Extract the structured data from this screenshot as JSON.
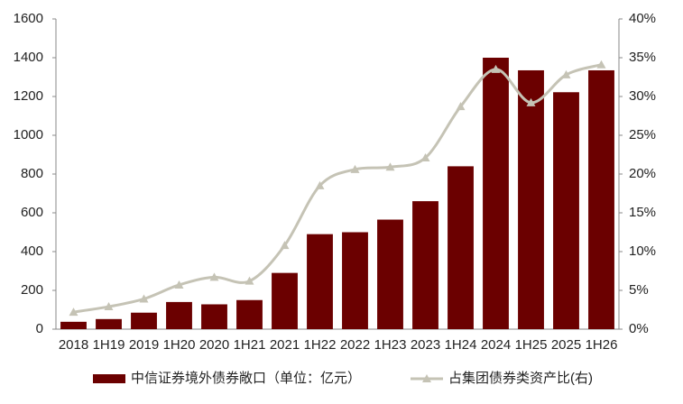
{
  "chart_data": {
    "type": "bar",
    "categories": [
      "2018",
      "1H19",
      "2019",
      "1H20",
      "2020",
      "1H21",
      "2021",
      "1H22",
      "2022",
      "1H23",
      "2023",
      "1H24",
      "2024",
      "1H25",
      "2025",
      "1H26"
    ],
    "series": [
      {
        "name": "中信证券境外债券敞口（单位：亿元）",
        "type": "bar",
        "color": "#6b0000",
        "values": [
          38,
          52,
          85,
          140,
          128,
          150,
          290,
          490,
          500,
          565,
          660,
          840,
          1400,
          1335,
          1222,
          1335
        ]
      },
      {
        "name": "占集团债券类资产比(右)",
        "type": "line",
        "axis": "y2",
        "color": "#c5c3b5",
        "values": [
          2.2,
          2.9,
          3.9,
          5.7,
          6.7,
          6.2,
          10.8,
          18.5,
          20.6,
          20.9,
          22.1,
          28.7,
          33.5,
          29.2,
          32.8,
          34.1
        ]
      }
    ],
    "ylim": [
      0,
      1600
    ],
    "yticks": [
      0,
      200,
      400,
      600,
      800,
      1000,
      1200,
      1400,
      1600
    ],
    "y2lim": [
      0,
      40
    ],
    "y2ticks": [
      {
        "value": 0,
        "label": "0%"
      },
      {
        "value": 5,
        "label": "5%"
      },
      {
        "value": 10,
        "label": "10%"
      },
      {
        "value": 15,
        "label": "15%"
      },
      {
        "value": 20,
        "label": "20%"
      },
      {
        "value": 25,
        "label": "25%"
      },
      {
        "value": 30,
        "label": "30%"
      },
      {
        "value": 35,
        "label": "35%"
      },
      {
        "value": 40,
        "label": "40%"
      }
    ],
    "grid": false
  }
}
